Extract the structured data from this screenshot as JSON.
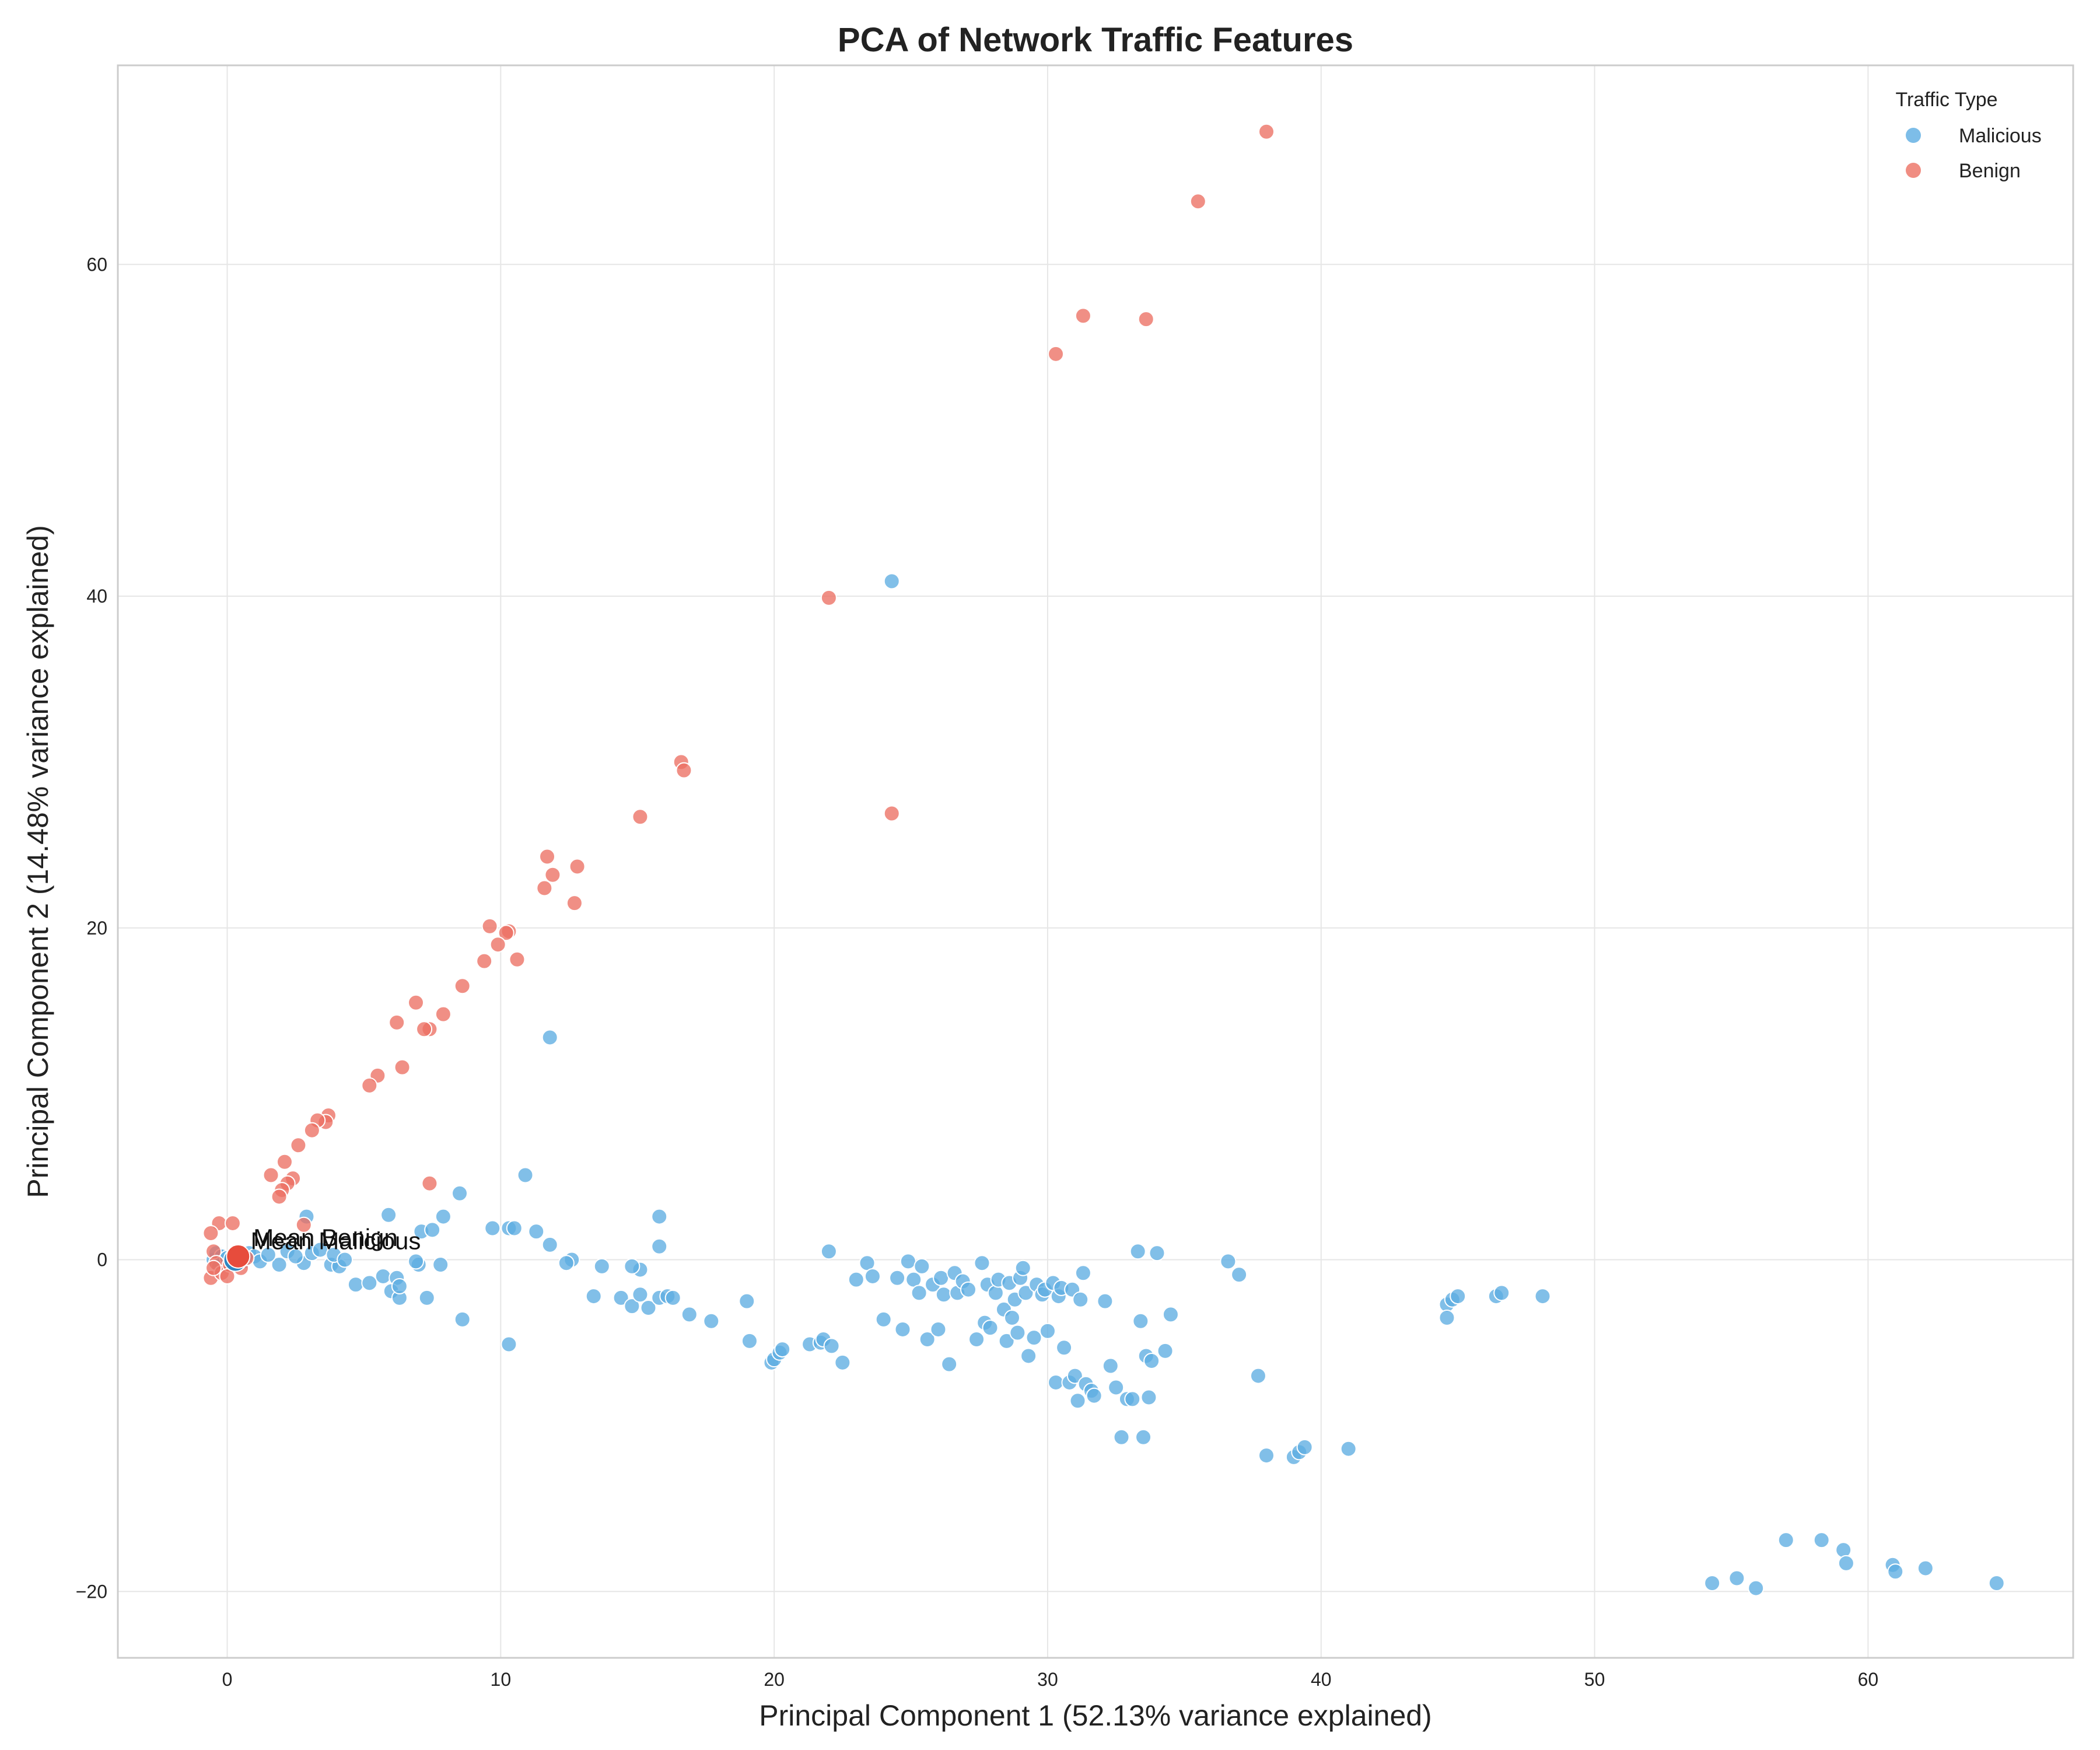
{
  "chart_data": {
    "type": "scatter",
    "title": "PCA of Network Traffic Features",
    "xlabel": "Principal Component 1 (52.13% variance explained)",
    "ylabel": "Principal Component 2 (14.48% variance explained)",
    "xlim": [
      -4,
      67.5
    ],
    "ylim": [
      -24,
      72
    ],
    "xticks": [
      0,
      10,
      20,
      30,
      40,
      50,
      60
    ],
    "yticks": [
      -20,
      0,
      20,
      40,
      60
    ],
    "grid": true,
    "legend": {
      "title": "Traffic Type",
      "placement": "top-right"
    },
    "series": [
      {
        "name": "Malicious",
        "color": "#5DADE2",
        "points": [
          [
            24.3,
            40.9
          ],
          [
            11.8,
            13.4
          ],
          [
            10.9,
            5.1
          ],
          [
            8.5,
            4.0
          ],
          [
            15.8,
            2.6
          ],
          [
            2.9,
            2.6
          ],
          [
            5.9,
            2.7
          ],
          [
            7.9,
            2.6
          ],
          [
            7.1,
            1.7
          ],
          [
            7.5,
            1.8
          ],
          [
            10.3,
            1.9
          ],
          [
            10.5,
            1.9
          ],
          [
            11.3,
            1.7
          ],
          [
            9.7,
            1.9
          ],
          [
            11.8,
            0.9
          ],
          [
            15.8,
            0.8
          ],
          [
            22.0,
            0.5
          ],
          [
            12.6,
            0.0
          ],
          [
            12.4,
            -0.2
          ],
          [
            13.7,
            -0.4
          ],
          [
            15.1,
            -0.6
          ],
          [
            14.8,
            -0.4
          ],
          [
            7.0,
            -0.3
          ],
          [
            7.8,
            -0.3
          ],
          [
            6.9,
            -0.1
          ],
          [
            3.8,
            -0.3
          ],
          [
            2.8,
            -0.2
          ],
          [
            1.9,
            -0.3
          ],
          [
            4.1,
            -0.4
          ],
          [
            5.7,
            -1.0
          ],
          [
            6.2,
            -1.1
          ],
          [
            4.7,
            -1.5
          ],
          [
            5.2,
            -1.4
          ],
          [
            6.0,
            -1.9
          ],
          [
            6.3,
            -2.3
          ],
          [
            7.3,
            -2.3
          ],
          [
            6.3,
            -1.6
          ],
          [
            8.6,
            -3.6
          ],
          [
            10.3,
            -5.1
          ],
          [
            13.4,
            -2.2
          ],
          [
            14.4,
            -2.3
          ],
          [
            14.8,
            -2.8
          ],
          [
            15.1,
            -2.1
          ],
          [
            15.4,
            -2.9
          ],
          [
            15.8,
            -2.3
          ],
          [
            16.1,
            -2.2
          ],
          [
            16.3,
            -2.3
          ],
          [
            16.9,
            -3.3
          ],
          [
            17.7,
            -3.7
          ],
          [
            19.0,
            -2.5
          ],
          [
            19.1,
            -4.9
          ],
          [
            19.9,
            -6.2
          ],
          [
            20.0,
            -6.0
          ],
          [
            20.2,
            -5.6
          ],
          [
            20.3,
            -5.4
          ],
          [
            21.3,
            -5.1
          ],
          [
            21.7,
            -5.0
          ],
          [
            21.8,
            -4.8
          ],
          [
            22.1,
            -5.2
          ],
          [
            22.5,
            -6.2
          ],
          [
            23.0,
            -1.2
          ],
          [
            23.4,
            -0.2
          ],
          [
            23.6,
            -1.0
          ],
          [
            24.0,
            -3.6
          ],
          [
            24.5,
            -1.1
          ],
          [
            24.7,
            -4.2
          ],
          [
            24.9,
            -0.1
          ],
          [
            25.1,
            -1.2
          ],
          [
            25.3,
            -2.0
          ],
          [
            25.4,
            -0.4
          ],
          [
            25.6,
            -4.8
          ],
          [
            25.8,
            -1.5
          ],
          [
            26.0,
            -4.2
          ],
          [
            26.1,
            -1.1
          ],
          [
            26.2,
            -2.1
          ],
          [
            26.4,
            -6.3
          ],
          [
            26.6,
            -0.8
          ],
          [
            26.7,
            -2.0
          ],
          [
            26.9,
            -1.3
          ],
          [
            27.1,
            -1.8
          ],
          [
            27.4,
            -4.8
          ],
          [
            27.6,
            -0.2
          ],
          [
            27.7,
            -3.8
          ],
          [
            27.8,
            -1.5
          ],
          [
            27.9,
            -4.1
          ],
          [
            28.1,
            -2.0
          ],
          [
            28.2,
            -1.2
          ],
          [
            28.4,
            -3.0
          ],
          [
            28.5,
            -4.9
          ],
          [
            28.6,
            -1.4
          ],
          [
            28.7,
            -3.5
          ],
          [
            28.8,
            -2.4
          ],
          [
            28.9,
            -4.4
          ],
          [
            29.0,
            -1.1
          ],
          [
            29.1,
            -0.5
          ],
          [
            29.2,
            -2.0
          ],
          [
            29.3,
            -5.8
          ],
          [
            29.5,
            -4.7
          ],
          [
            29.6,
            -1.5
          ],
          [
            29.8,
            -2.1
          ],
          [
            29.9,
            -1.8
          ],
          [
            30.0,
            -4.3
          ],
          [
            30.2,
            -1.4
          ],
          [
            30.3,
            -7.4
          ],
          [
            30.4,
            -2.2
          ],
          [
            30.5,
            -1.7
          ],
          [
            30.6,
            -5.3
          ],
          [
            30.8,
            -7.4
          ],
          [
            30.9,
            -1.8
          ],
          [
            31.0,
            -7.0
          ],
          [
            31.1,
            -8.5
          ],
          [
            31.2,
            -2.4
          ],
          [
            31.3,
            -0.8
          ],
          [
            31.4,
            -7.5
          ],
          [
            31.6,
            -7.9
          ],
          [
            31.7,
            -8.2
          ],
          [
            32.1,
            -2.5
          ],
          [
            32.3,
            -6.4
          ],
          [
            32.5,
            -7.7
          ],
          [
            32.7,
            -10.7
          ],
          [
            32.9,
            -8.4
          ],
          [
            33.1,
            -8.4
          ],
          [
            33.3,
            0.5
          ],
          [
            33.4,
            -3.7
          ],
          [
            33.5,
            -10.7
          ],
          [
            33.6,
            -5.8
          ],
          [
            33.7,
            -8.3
          ],
          [
            33.8,
            -6.1
          ],
          [
            34.0,
            0.4
          ],
          [
            34.3,
            -5.5
          ],
          [
            34.5,
            -3.3
          ],
          [
            36.6,
            -0.1
          ],
          [
            37.0,
            -0.9
          ],
          [
            37.7,
            -7.0
          ],
          [
            38.0,
            -11.8
          ],
          [
            39.0,
            -11.9
          ],
          [
            39.2,
            -11.6
          ],
          [
            39.4,
            -11.3
          ],
          [
            41.0,
            -11.4
          ],
          [
            44.6,
            -2.7
          ],
          [
            44.8,
            -2.4
          ],
          [
            45.0,
            -2.2
          ],
          [
            44.6,
            -3.5
          ],
          [
            46.4,
            -2.2
          ],
          [
            46.6,
            -2.0
          ],
          [
            48.1,
            -2.2
          ],
          [
            54.3,
            -19.5
          ],
          [
            55.2,
            -19.2
          ],
          [
            55.9,
            -19.8
          ],
          [
            57.0,
            -16.9
          ],
          [
            58.3,
            -16.9
          ],
          [
            59.1,
            -17.5
          ],
          [
            59.2,
            -18.3
          ],
          [
            60.9,
            -18.4
          ],
          [
            61.0,
            -18.8
          ],
          [
            62.1,
            -18.6
          ],
          [
            64.7,
            -19.5
          ],
          [
            -0.5,
            0.0
          ],
          [
            -0.4,
            0.4
          ],
          [
            -0.3,
            -0.4
          ],
          [
            -0.2,
            0.2
          ],
          [
            0.0,
            0.1
          ],
          [
            0.2,
            -0.2
          ],
          [
            0.4,
            0.3
          ],
          [
            0.6,
            -0.1
          ],
          [
            0.8,
            0.4
          ],
          [
            1.0,
            0.2
          ],
          [
            1.2,
            -0.1
          ],
          [
            1.5,
            0.3
          ],
          [
            2.2,
            0.5
          ],
          [
            2.5,
            0.2
          ],
          [
            3.1,
            0.4
          ],
          [
            3.4,
            0.6
          ],
          [
            3.9,
            0.3
          ],
          [
            4.3,
            0.0
          ]
        ]
      },
      {
        "name": "Benign",
        "color": "#EC7063",
        "points": [
          [
            38.0,
            68.0
          ],
          [
            35.5,
            63.8
          ],
          [
            31.3,
            56.9
          ],
          [
            33.6,
            56.7
          ],
          [
            30.3,
            54.6
          ],
          [
            22.0,
            39.9
          ],
          [
            16.6,
            30.0
          ],
          [
            16.7,
            29.5
          ],
          [
            24.3,
            26.9
          ],
          [
            15.1,
            26.7
          ],
          [
            11.7,
            24.3
          ],
          [
            12.8,
            23.7
          ],
          [
            11.9,
            23.2
          ],
          [
            11.6,
            22.4
          ],
          [
            12.7,
            21.5
          ],
          [
            10.3,
            19.8
          ],
          [
            10.2,
            19.7
          ],
          [
            9.6,
            20.1
          ],
          [
            9.9,
            19.0
          ],
          [
            9.4,
            18.0
          ],
          [
            10.6,
            18.1
          ],
          [
            8.6,
            16.5
          ],
          [
            6.9,
            15.5
          ],
          [
            7.9,
            14.8
          ],
          [
            6.2,
            14.3
          ],
          [
            7.4,
            13.9
          ],
          [
            7.2,
            13.9
          ],
          [
            6.4,
            11.6
          ],
          [
            5.5,
            11.1
          ],
          [
            5.2,
            10.5
          ],
          [
            3.7,
            8.7
          ],
          [
            3.6,
            8.3
          ],
          [
            3.3,
            8.4
          ],
          [
            3.1,
            7.8
          ],
          [
            2.6,
            6.9
          ],
          [
            2.1,
            5.9
          ],
          [
            1.6,
            5.1
          ],
          [
            2.4,
            4.9
          ],
          [
            2.2,
            4.6
          ],
          [
            2.0,
            4.2
          ],
          [
            1.9,
            3.8
          ],
          [
            7.4,
            4.6
          ],
          [
            2.8,
            2.1
          ],
          [
            -0.3,
            2.2
          ],
          [
            0.2,
            2.2
          ],
          [
            -0.6,
            1.6
          ],
          [
            -0.5,
            0.5
          ],
          [
            -0.4,
            -0.2
          ],
          [
            -0.6,
            -1.1
          ],
          [
            -0.2,
            -0.8
          ],
          [
            0.1,
            -0.3
          ],
          [
            0.3,
            0.2
          ],
          [
            0.5,
            -0.5
          ],
          [
            0.7,
            0.1
          ],
          [
            -0.5,
            -0.5
          ],
          [
            0.0,
            -1.0
          ]
        ]
      }
    ],
    "annotations": [
      {
        "text": "Mean Malicious",
        "x": 0.3,
        "y": 0.0,
        "color": "#2E86C1"
      },
      {
        "text": "Mean Benign",
        "x": 0.4,
        "y": 0.2,
        "color": "#E74C3C"
      }
    ]
  }
}
